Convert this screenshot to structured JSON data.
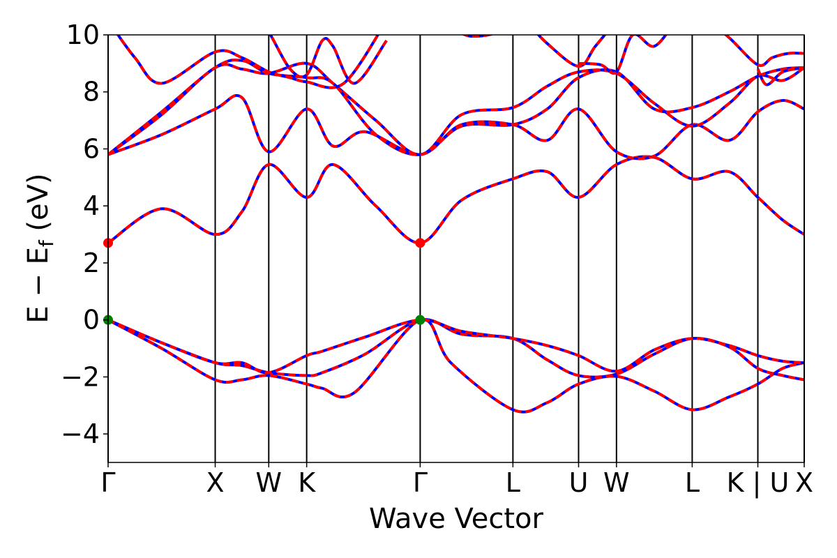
{
  "chart_data": {
    "type": "line",
    "xlabel": "Wave Vector",
    "ylabel": "E − E",
    "ylabel_sub": "f",
    "ylabel_unit": " (eV)",
    "ylim": [
      -5,
      10
    ],
    "yticks": [
      -4,
      -2,
      0,
      2,
      4,
      6,
      8,
      10
    ],
    "ytick_labels": [
      "−4",
      "−2",
      "0",
      "2",
      "4",
      "6",
      "8",
      "10"
    ],
    "xlim": [
      0,
      6.5
    ],
    "kpoints": [
      {
        "label": "Γ",
        "x": 0.0
      },
      {
        "label": "X",
        "x": 1.0
      },
      {
        "label": "W",
        "x": 1.5
      },
      {
        "label": "K",
        "x": 1.854
      },
      {
        "label": "Γ",
        "x": 2.914
      },
      {
        "label": "L",
        "x": 3.78
      },
      {
        "label": "U",
        "x": 4.393
      },
      {
        "label": "W",
        "x": 4.747
      },
      {
        "label": "L",
        "x": 5.454
      },
      {
        "label": "K | U",
        "x": 6.067
      },
      {
        "label": "X",
        "x": 6.5
      }
    ],
    "colors": {
      "series_a": "#0000ff",
      "series_b": "#ff0000",
      "cbm_marker": "#ff0000",
      "vbm_marker": "#008000"
    },
    "markers": [
      {
        "type": "cbm",
        "x": 0.0,
        "y": 2.7
      },
      {
        "type": "cbm",
        "x": 2.914,
        "y": 2.7
      },
      {
        "type": "vbm",
        "x": 0.0,
        "y": 0.0
      },
      {
        "type": "vbm",
        "x": 2.914,
        "y": 0.0
      }
    ],
    "bands": [
      {
        "name": "band-1",
        "x": [
          0,
          0.5,
          1.0,
          1.25,
          1.5,
          1.854,
          2.0,
          2.3,
          2.914,
          3.2,
          3.78,
          4.1,
          4.393,
          4.747,
          5.1,
          5.454,
          5.8,
          6.067,
          6.3,
          6.5
        ],
        "y": [
          0,
          -1.0,
          -2.1,
          -2.1,
          -1.95,
          -2.25,
          -2.4,
          -2.55,
          0,
          -1.5,
          -3.15,
          -2.9,
          -2.25,
          -1.98,
          -2.5,
          -3.15,
          -2.7,
          -2.25,
          -1.7,
          -1.5
        ]
      },
      {
        "name": "band-2",
        "x": [
          0,
          0.5,
          1.0,
          1.25,
          1.5,
          1.854,
          2.0,
          2.4,
          2.914,
          3.3,
          3.78,
          4.1,
          4.393,
          4.747,
          5.1,
          5.454,
          5.8,
          6.067,
          6.3,
          6.5
        ],
        "y": [
          0,
          -0.8,
          -1.5,
          -1.6,
          -1.85,
          -1.95,
          -1.85,
          -1.2,
          0,
          -0.5,
          -0.65,
          -1.4,
          -1.95,
          -1.9,
          -1.2,
          -0.65,
          -0.95,
          -1.7,
          -1.95,
          -2.1
        ]
      },
      {
        "name": "band-3",
        "x": [
          0,
          0.5,
          1.0,
          1.25,
          1.5,
          1.854,
          2.0,
          2.4,
          2.914,
          3.3,
          3.78,
          4.1,
          4.393,
          4.747,
          5.1,
          5.454,
          5.8,
          6.067,
          6.3,
          6.5
        ],
        "y": [
          0,
          -0.8,
          -1.5,
          -1.5,
          -1.85,
          -1.25,
          -1.1,
          -0.6,
          0,
          -0.4,
          -0.65,
          -0.9,
          -1.25,
          -1.8,
          -1.05,
          -0.65,
          -0.9,
          -1.25,
          -1.45,
          -1.5
        ]
      },
      {
        "name": "band-4",
        "x": [
          0,
          0.5,
          1.0,
          1.25,
          1.5,
          1.854,
          2.1,
          2.5,
          2.914,
          3.3,
          3.78,
          4.1,
          4.393,
          4.747,
          5.1,
          5.454,
          5.8,
          6.067,
          6.3,
          6.5
        ],
        "y": [
          2.7,
          3.9,
          3.0,
          3.8,
          5.45,
          4.3,
          5.45,
          4.0,
          2.7,
          4.2,
          4.95,
          5.2,
          4.3,
          5.45,
          5.7,
          4.95,
          5.2,
          4.3,
          3.5,
          3.0
        ]
      },
      {
        "name": "band-5",
        "x": [
          0,
          0.5,
          1.0,
          1.25,
          1.5,
          1.854,
          2.1,
          2.4,
          2.914,
          3.3,
          3.78,
          4.1,
          4.393,
          4.747,
          5.1,
          5.454,
          5.8,
          6.067,
          6.3,
          6.5
        ],
        "y": [
          5.8,
          6.5,
          7.4,
          7.8,
          5.9,
          7.4,
          6.1,
          6.6,
          5.8,
          6.85,
          6.85,
          6.3,
          7.4,
          5.9,
          5.75,
          6.85,
          6.3,
          7.3,
          7.7,
          7.4
        ]
      },
      {
        "name": "band-6",
        "x": [
          0,
          0.5,
          1.0,
          1.25,
          1.5,
          1.854,
          2.1,
          2.5,
          2.914,
          3.3,
          3.78,
          4.1,
          4.393,
          4.747,
          5.1,
          5.454,
          5.8,
          6.067,
          6.3,
          6.5
        ],
        "y": [
          5.8,
          7.2,
          8.85,
          8.8,
          8.65,
          9.0,
          8.3,
          7.0,
          5.8,
          7.2,
          7.45,
          8.2,
          8.7,
          8.65,
          7.6,
          6.8,
          7.6,
          8.55,
          8.4,
          8.85
        ]
      },
      {
        "name": "band-7",
        "x": [
          0,
          0.5,
          1.0,
          1.25,
          1.5,
          1.854,
          2.1,
          2.5,
          2.914,
          3.3,
          3.78,
          4.1,
          4.393,
          4.747,
          5.1,
          5.454,
          5.8,
          6.067,
          6.3,
          6.5
        ],
        "y": [
          5.8,
          7.3,
          8.85,
          9.1,
          8.65,
          8.5,
          8.3,
          6.5,
          5.8,
          6.8,
          6.85,
          7.4,
          8.5,
          8.7,
          7.4,
          7.45,
          8.0,
          8.55,
          8.8,
          8.85
        ]
      },
      {
        "name": "band-8",
        "x": [
          0,
          0.25,
          0.5,
          1.0,
          1.25,
          1.5,
          1.7,
          1.854,
          2.2,
          2.6
        ],
        "y": [
          10.5,
          9.2,
          8.3,
          9.4,
          9.2,
          8.7,
          8.5,
          8.35,
          8.3,
          10.5
        ]
      },
      {
        "name": "band-9",
        "x": [
          1.4,
          1.5,
          1.7,
          1.854,
          2.0,
          2.1,
          2.3,
          2.6
        ],
        "y": [
          10.5,
          10.1,
          8.8,
          8.6,
          9.8,
          9.6,
          8.3,
          9.8
        ]
      },
      {
        "name": "band-10",
        "x": [
          3.3,
          3.4,
          3.6,
          3.8
        ],
        "y": [
          10.05,
          9.95,
          10.05,
          10.5
        ]
      },
      {
        "name": "band-11",
        "x": [
          3.9,
          4.1,
          4.393,
          4.55,
          4.747
        ],
        "y": [
          10.5,
          9.7,
          8.9,
          9.6,
          10.5
        ]
      },
      {
        "name": "band-12",
        "x": [
          4.393,
          4.6,
          4.747,
          4.9,
          5.1,
          5.3
        ],
        "y": [
          9.0,
          8.95,
          8.7,
          10.0,
          9.6,
          10.5
        ]
      },
      {
        "name": "band-13",
        "x": [
          5.6,
          5.8,
          6.067,
          6.2,
          6.35,
          6.5
        ],
        "y": [
          10.5,
          9.9,
          8.95,
          9.2,
          9.35,
          9.35
        ]
      },
      {
        "name": "band-14",
        "x": [
          6.067,
          6.15,
          6.3,
          6.5
        ],
        "y": [
          8.8,
          8.25,
          8.7,
          8.85
        ]
      }
    ]
  }
}
